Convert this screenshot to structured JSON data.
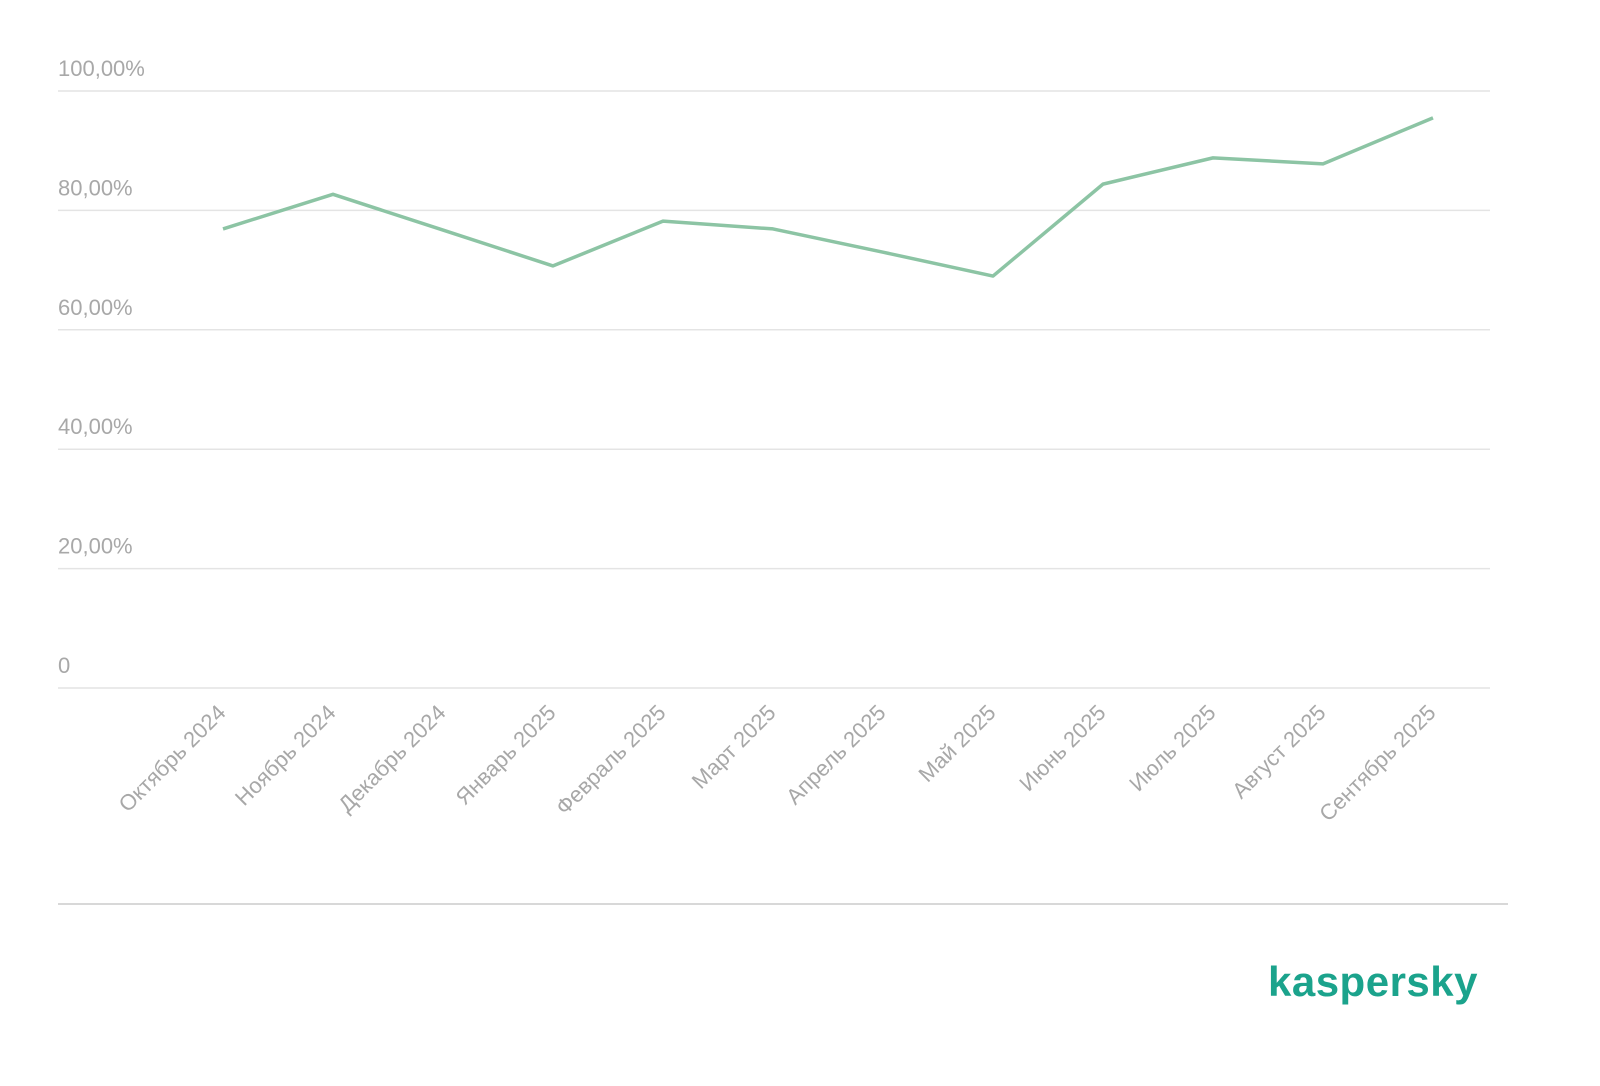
{
  "chart_data": {
    "type": "line",
    "categories": [
      "Октябрь 2024",
      "Ноябрь 2024",
      "Декабрь 2024",
      "Январь 2025",
      "Февраль 2025",
      "Март 2025",
      "Апрель 2025",
      "Май 2025",
      "Июнь 2025",
      "Июль 2025",
      "Август 2025",
      "Сентябрь 2025"
    ],
    "values": [
      76.9,
      82.7,
      76.7,
      70.7,
      78.2,
      76.9,
      73.0,
      69.0,
      84.4,
      88.8,
      87.8,
      95.5
    ],
    "color": "#8cc4a4",
    "ylim": [
      0,
      100
    ],
    "yticks": [
      {
        "value": 0,
        "label": "0"
      },
      {
        "value": 20,
        "label": "20,00%"
      },
      {
        "value": 40,
        "label": "40,00%"
      },
      {
        "value": 60,
        "label": "60,00%"
      },
      {
        "value": 80,
        "label": "80,00%"
      },
      {
        "value": 100,
        "label": "100,00%"
      }
    ],
    "grid": true
  },
  "footer": {
    "logo": "kaspersky"
  }
}
